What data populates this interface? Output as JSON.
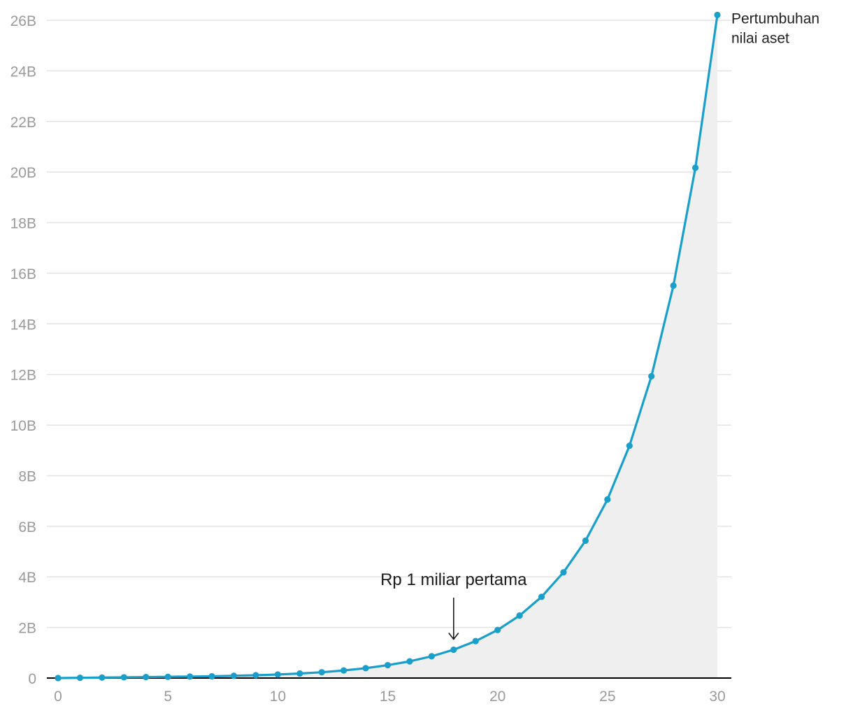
{
  "chart_data": {
    "type": "area",
    "title": "",
    "xlabel": "",
    "ylabel": "",
    "xlim": [
      0,
      30
    ],
    "ylim": [
      0,
      26
    ],
    "y_unit": "B",
    "grid": true,
    "x_ticks": [
      "0",
      "5",
      "10",
      "15",
      "20",
      "25",
      "30"
    ],
    "y_ticks": [
      "0",
      "2B",
      "4B",
      "6B",
      "8B",
      "10B",
      "12B",
      "14B",
      "16B",
      "18B",
      "20B",
      "22B",
      "24B",
      "26B"
    ],
    "series": [
      {
        "name": "Pertumbuhan nilai aset",
        "name_lines": [
          "Pertumbuhan",
          "nilai aset"
        ],
        "color": "#1a9fcb",
        "area_color": "#efefef",
        "x": [
          0,
          1,
          2,
          3,
          4,
          5,
          6,
          7,
          8,
          9,
          10,
          11,
          12,
          13,
          14,
          15,
          16,
          17,
          18,
          19,
          20,
          21,
          22,
          23,
          24,
          25,
          26,
          27,
          28,
          29,
          30
        ],
        "y": [
          0.0,
          0.01,
          0.02,
          0.03,
          0.04,
          0.05,
          0.06,
          0.07,
          0.09,
          0.11,
          0.14,
          0.18,
          0.23,
          0.3,
          0.39,
          0.51,
          0.66,
          0.86,
          1.12,
          1.46,
          1.9,
          2.47,
          3.21,
          4.18,
          5.43,
          7.06,
          9.18,
          11.93,
          15.51,
          20.17,
          26.21
        ]
      }
    ],
    "annotations": [
      {
        "text": "Rp 1 miliar pertama",
        "x": 18,
        "y": 1.12
      }
    ]
  }
}
